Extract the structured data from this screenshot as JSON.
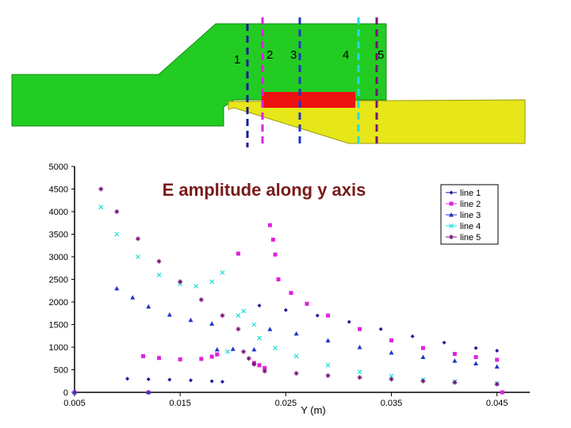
{
  "diagram": {
    "line_numbers": [
      "1",
      "2",
      "3",
      "4",
      "5"
    ],
    "colors": {
      "background": "#ffffff",
      "green_region": "#22cc22",
      "yellow_region": "#e6e619",
      "red_electrode": "#ee1111",
      "line1": "#1a1a99",
      "line2": "#dd22dd",
      "line3": "#2233cc",
      "line4": "#22dddd",
      "line5": "#771177"
    }
  },
  "chart_data": {
    "type": "scatter",
    "title": "E amplitude along y axis",
    "xlabel": "Y (m)",
    "ylabel": "",
    "xlim": [
      0.005,
      0.046
    ],
    "ylim": [
      0,
      5000
    ],
    "x_ticks": [
      "0.005",
      "0.015",
      "0.025",
      "0.035",
      "0.045"
    ],
    "x_tick_values": [
      0.005,
      0.015,
      0.025,
      0.035,
      0.045
    ],
    "y_ticks": [
      "0",
      "500",
      "1000",
      "1500",
      "2000",
      "2500",
      "3000",
      "3500",
      "4000",
      "4500",
      "5000"
    ],
    "y_tick_values": [
      0,
      500,
      1000,
      1500,
      2000,
      2500,
      3000,
      3500,
      4000,
      4500,
      5000
    ],
    "grid": false,
    "legend_position": "top-right",
    "series": [
      {
        "name": "line 1",
        "color": "#1a1a99",
        "marker": "diamond",
        "points": [
          [
            0.01,
            300
          ],
          [
            0.012,
            290
          ],
          [
            0.014,
            280
          ],
          [
            0.016,
            265
          ],
          [
            0.018,
            245
          ],
          [
            0.019,
            235
          ],
          [
            0.0225,
            1920
          ],
          [
            0.025,
            1820
          ],
          [
            0.028,
            1700
          ],
          [
            0.031,
            1560
          ],
          [
            0.034,
            1400
          ],
          [
            0.037,
            1240
          ],
          [
            0.04,
            1100
          ],
          [
            0.043,
            980
          ],
          [
            0.045,
            920
          ]
        ]
      },
      {
        "name": "line 2",
        "color": "#dd22dd",
        "marker": "square",
        "points": [
          [
            0.005,
            0
          ],
          [
            0.012,
            0
          ],
          [
            0.0115,
            800
          ],
          [
            0.013,
            760
          ],
          [
            0.015,
            730
          ],
          [
            0.017,
            740
          ],
          [
            0.018,
            790
          ],
          [
            0.0185,
            840
          ],
          [
            0.0205,
            3070
          ],
          [
            0.022,
            650
          ],
          [
            0.0225,
            600
          ],
          [
            0.023,
            540
          ],
          [
            0.0235,
            3700
          ],
          [
            0.0238,
            3380
          ],
          [
            0.024,
            3050
          ],
          [
            0.0243,
            2500
          ],
          [
            0.0255,
            2200
          ],
          [
            0.027,
            1960
          ],
          [
            0.029,
            1700
          ],
          [
            0.032,
            1400
          ],
          [
            0.035,
            1150
          ],
          [
            0.038,
            980
          ],
          [
            0.041,
            850
          ],
          [
            0.043,
            780
          ],
          [
            0.045,
            720
          ],
          [
            0.0455,
            0
          ]
        ]
      },
      {
        "name": "line 3",
        "color": "#2233cc",
        "marker": "triangle",
        "points": [
          [
            0.005,
            0
          ],
          [
            0.012,
            0
          ],
          [
            0.009,
            2300
          ],
          [
            0.0105,
            2100
          ],
          [
            0.012,
            1900
          ],
          [
            0.014,
            1720
          ],
          [
            0.016,
            1600
          ],
          [
            0.018,
            1520
          ],
          [
            0.0185,
            950
          ],
          [
            0.02,
            960
          ],
          [
            0.022,
            950
          ],
          [
            0.0235,
            1400
          ],
          [
            0.026,
            1300
          ],
          [
            0.029,
            1150
          ],
          [
            0.032,
            1000
          ],
          [
            0.035,
            880
          ],
          [
            0.038,
            780
          ],
          [
            0.041,
            700
          ],
          [
            0.043,
            640
          ],
          [
            0.045,
            570
          ]
        ]
      },
      {
        "name": "line 4",
        "color": "#22dddd",
        "marker": "cross",
        "points": [
          [
            0.0075,
            4100
          ],
          [
            0.009,
            3500
          ],
          [
            0.011,
            3000
          ],
          [
            0.013,
            2600
          ],
          [
            0.015,
            2400
          ],
          [
            0.0165,
            2350
          ],
          [
            0.018,
            2450
          ],
          [
            0.019,
            2650
          ],
          [
            0.0195,
            900
          ],
          [
            0.0205,
            1700
          ],
          [
            0.021,
            1800
          ],
          [
            0.022,
            1500
          ],
          [
            0.0225,
            1200
          ],
          [
            0.024,
            980
          ],
          [
            0.026,
            800
          ],
          [
            0.029,
            600
          ],
          [
            0.032,
            450
          ],
          [
            0.035,
            360
          ],
          [
            0.038,
            280
          ],
          [
            0.041,
            240
          ],
          [
            0.045,
            200
          ]
        ]
      },
      {
        "name": "line 5",
        "color": "#771177",
        "marker": "star",
        "points": [
          [
            0.0075,
            4500
          ],
          [
            0.009,
            4000
          ],
          [
            0.011,
            3400
          ],
          [
            0.013,
            2900
          ],
          [
            0.015,
            2450
          ],
          [
            0.017,
            2050
          ],
          [
            0.019,
            1700
          ],
          [
            0.0205,
            1400
          ],
          [
            0.021,
            900
          ],
          [
            0.0215,
            750
          ],
          [
            0.022,
            620
          ],
          [
            0.023,
            470
          ],
          [
            0.026,
            420
          ],
          [
            0.029,
            370
          ],
          [
            0.032,
            330
          ],
          [
            0.035,
            290
          ],
          [
            0.038,
            250
          ],
          [
            0.041,
            220
          ],
          [
            0.045,
            180
          ]
        ]
      }
    ]
  }
}
